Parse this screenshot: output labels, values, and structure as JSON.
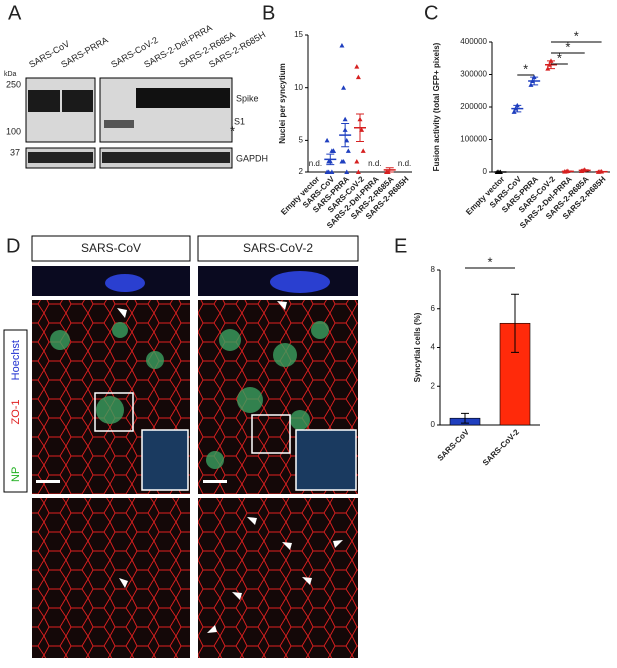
{
  "panels": {
    "a": "A",
    "b": "B",
    "c": "C",
    "d": "D",
    "e": "E"
  },
  "blot": {
    "lanes": [
      "SARS-CoV",
      "SARS-PRRA",
      "SARS-CoV-2",
      "SARS-2-Del-PRRA",
      "SARS-2-R685A",
      "SARS-2-R685H"
    ],
    "unit": "kDa",
    "markers": [
      "250",
      "100",
      "37"
    ],
    "bands": [
      "Spike",
      "S1",
      "*",
      "GAPDH"
    ]
  },
  "micrograph": {
    "columns": [
      "SARS-CoV",
      "SARS-CoV-2"
    ],
    "stains": [
      "Hoechst",
      "ZO-1",
      "NP"
    ]
  },
  "chart_data": [
    {
      "type": "dot",
      "y_label": "Nuclei per syncytium",
      "categories": [
        "Empty vector",
        "SARS-CoV",
        "SARS-PRRA",
        "SARS-CoV-2",
        "SARS-2-Del-PRRA",
        "SARS-2-R685A",
        "SARS-2-R685H"
      ],
      "values": [
        null,
        3.2,
        5.5,
        6.2,
        null,
        2.2,
        null
      ],
      "value_labels": [
        "n.d.",
        null,
        null,
        null,
        "n.d.",
        null,
        "n.d."
      ],
      "errors": [
        null,
        0.5,
        1.1,
        1.3,
        null,
        0.2,
        null
      ],
      "points": [
        [],
        [
          2,
          3,
          3,
          4,
          4,
          5,
          2,
          3,
          2,
          4
        ],
        [
          14,
          10,
          7,
          5,
          4,
          3,
          3,
          6,
          2
        ],
        [
          12,
          11,
          7,
          6,
          4,
          3,
          2
        ],
        [],
        [
          2,
          2
        ],
        []
      ],
      "colors": [
        "#000000",
        "#1f3fbf",
        "#1f3fbf",
        "#d62020",
        "#d62020",
        "#d62020",
        "#d62020"
      ],
      "ylim": [
        2,
        15
      ],
      "yticks": [
        2,
        5,
        10,
        15
      ]
    },
    {
      "type": "dot",
      "y_label": "Fusion activity (total GFP+ pixels)",
      "categories": [
        "Empty vector",
        "SARS-CoV",
        "SARS-PRRA",
        "SARS-CoV-2",
        "SARS-2-Del-PRRA",
        "SARS-2-R685A",
        "SARS-2-R685H"
      ],
      "values": [
        0,
        195000,
        280000,
        330000,
        2000,
        5000,
        1000
      ],
      "errors": [
        0,
        10000,
        12000,
        12000,
        1000,
        2000,
        500
      ],
      "points": [
        [
          0,
          0,
          0
        ],
        [
          185000,
          195000,
          205000
        ],
        [
          268000,
          280000,
          292000
        ],
        [
          318000,
          330000,
          342000
        ],
        [
          1000,
          2000,
          3000
        ],
        [
          3000,
          5000,
          7000
        ],
        [
          500,
          1000,
          1500
        ]
      ],
      "colors": [
        "#000000",
        "#1f3fbf",
        "#1f3fbf",
        "#d62020",
        "#d62020",
        "#d62020",
        "#d62020"
      ],
      "significance": [
        {
          "pair": [
            "SARS-CoV",
            "SARS-PRRA"
          ],
          "label": "*"
        },
        {
          "pair": [
            "SARS-CoV-2",
            "SARS-2-Del-PRRA"
          ],
          "label": "*"
        },
        {
          "pair": [
            "SARS-CoV-2",
            "SARS-2-R685A"
          ],
          "label": "*"
        },
        {
          "pair": [
            "SARS-CoV-2",
            "SARS-2-R685H"
          ],
          "label": "*"
        }
      ],
      "ylim": [
        0,
        400000
      ],
      "yticks": [
        0,
        100000,
        200000,
        300000,
        400000
      ]
    },
    {
      "type": "bar",
      "y_label": "Syncytial cells (%)",
      "categories": [
        "SARS-CoV",
        "SARS-CoV-2"
      ],
      "values": [
        0.35,
        5.25
      ],
      "errors": [
        0.25,
        1.5
      ],
      "colors": [
        "#1f3fbf",
        "#ff2a0a"
      ],
      "significance": [
        {
          "pair": [
            "SARS-CoV",
            "SARS-CoV-2"
          ],
          "label": "*"
        }
      ],
      "ylim": [
        0,
        8
      ],
      "yticks": [
        0,
        2,
        4,
        6,
        8
      ]
    }
  ]
}
